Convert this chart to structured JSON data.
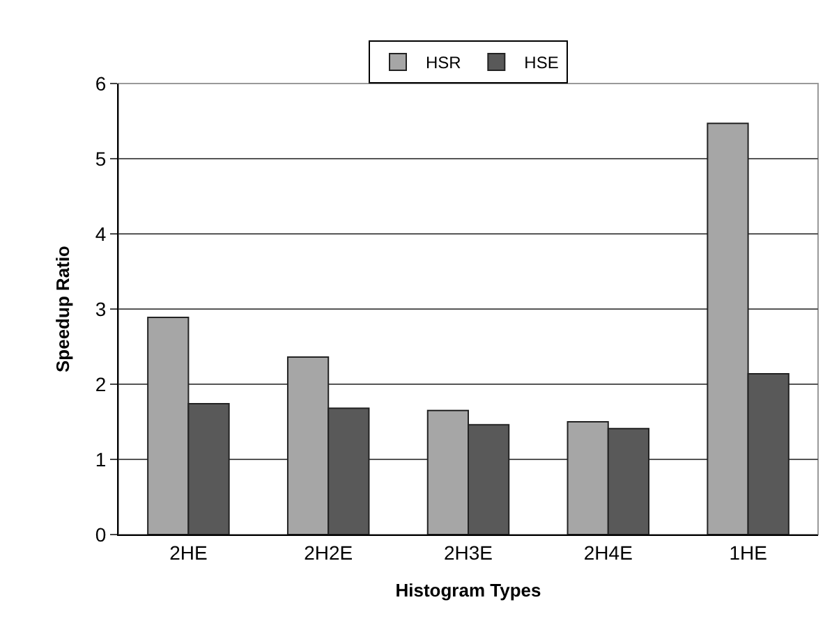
{
  "chart_data": {
    "type": "bar",
    "xlabel": "Histogram Types",
    "ylabel": "Speedup Ratio",
    "categories": [
      "2HE",
      "2H2E",
      "2H3E",
      "2H4E",
      "1HE"
    ],
    "series": [
      {
        "name": "HSR",
        "color": "#a6a6a6",
        "values": [
          2.89,
          2.36,
          1.65,
          1.5,
          5.47
        ]
      },
      {
        "name": "HSE",
        "color": "#595959",
        "values": [
          1.74,
          1.68,
          1.46,
          1.41,
          2.14
        ]
      }
    ],
    "ylim": [
      0,
      6
    ],
    "yticks": [
      0,
      1,
      2,
      3,
      4,
      5,
      6
    ],
    "grid": "y",
    "legend": "top"
  }
}
